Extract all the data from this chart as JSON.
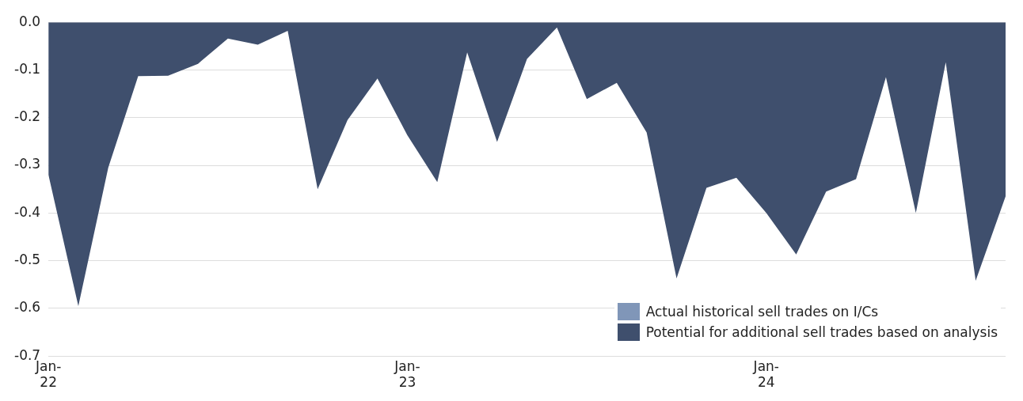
{
  "chart_data": {
    "type": "area",
    "categories": [
      "Jan-22",
      null,
      null,
      null,
      null,
      null,
      null,
      null,
      null,
      null,
      null,
      null,
      "Jan-23",
      null,
      null,
      null,
      null,
      null,
      null,
      null,
      null,
      null,
      null,
      null,
      "Jan-24",
      null,
      null,
      null,
      null,
      null,
      null,
      null,
      null
    ],
    "series": [
      {
        "name": "Actual historical sell trades on I/Cs",
        "color": "#8096b8",
        "values": [
          null,
          null,
          null,
          null,
          null,
          null,
          null,
          null,
          null,
          null,
          null,
          null,
          null,
          null,
          null,
          null,
          null,
          null,
          null,
          null,
          null,
          null,
          null,
          null,
          null,
          null,
          null,
          null,
          null,
          null,
          null,
          null,
          null
        ]
      },
      {
        "name": "Potential for additional sell trades based on analysis",
        "color": "#3f4f6d",
        "values": [
          -0.32,
          -0.595,
          -0.305,
          -0.113,
          -0.112,
          -0.087,
          -0.034,
          -0.047,
          -0.018,
          -0.35,
          -0.205,
          -0.118,
          -0.237,
          -0.335,
          -0.063,
          -0.251,
          -0.077,
          -0.011,
          -0.161,
          -0.127,
          -0.231,
          -0.537,
          -0.347,
          -0.326,
          -0.4,
          -0.487,
          -0.355,
          -0.329,
          -0.115,
          -0.4,
          -0.084,
          -0.542,
          -0.365
        ]
      }
    ],
    "ylim": [
      -0.7,
      0
    ],
    "yticks": [
      {
        "value": -0.7,
        "label": "-0.7"
      },
      {
        "value": -0.6,
        "label": "-0.6"
      },
      {
        "value": -0.5,
        "label": "-0.5"
      },
      {
        "value": -0.4,
        "label": "-0.4"
      },
      {
        "value": -0.3,
        "label": "-0.3"
      },
      {
        "value": -0.2,
        "label": "-0.2"
      },
      {
        "value": -0.1,
        "label": "-0.1"
      },
      {
        "value": 0,
        "label": "0.0"
      }
    ],
    "grid": "y",
    "legend": "bottom right"
  }
}
